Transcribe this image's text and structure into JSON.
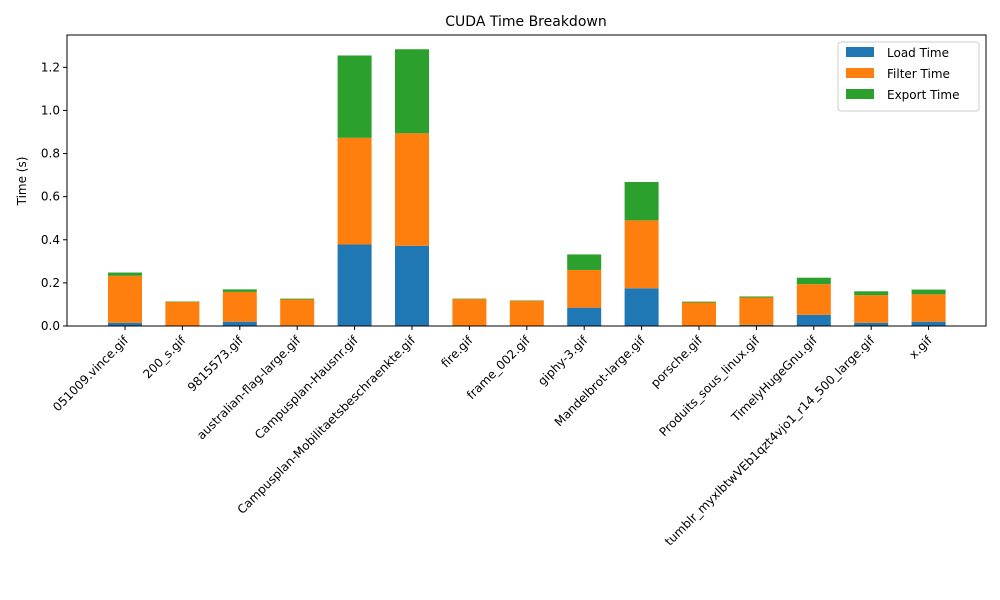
{
  "chart_data": {
    "type": "bar",
    "stacked": true,
    "title": "CUDA Time Breakdown",
    "xlabel": "",
    "ylabel": "Time (s)",
    "ylim": [
      0,
      1.35
    ],
    "yticks": [
      "0.0",
      "0.2",
      "0.4",
      "0.6",
      "0.8",
      "1.0",
      "1.2"
    ],
    "grid": false,
    "legend_position": "top-right",
    "categories": [
      "051009.vince.gif",
      "200_s.gif",
      "9815573.gif",
      "australian-flag-large.gif",
      "Campusplan-Hausnr.gif",
      "Campusplan-Mobilitaetsbeschraenkte.gif",
      "fire.gif",
      "frame_002.gif",
      "giphy-3.gif",
      "Mandelbrot-large.gif",
      "porsche.gif",
      "Produits_sous_linux.gif",
      "TimelyHugeGnu.gif",
      "tumblr_myxlbtwVEb1qzt4vjo1_r14_500_large.gif",
      "x.gif"
    ],
    "series": [
      {
        "name": "Load Time",
        "color": "#1f77b4",
        "values": [
          0.015,
          0.002,
          0.02,
          0.003,
          0.378,
          0.372,
          0.002,
          0.002,
          0.085,
          0.175,
          0.002,
          0.005,
          0.052,
          0.015,
          0.02
        ]
      },
      {
        "name": "Filter Time",
        "color": "#ff7f0e",
        "values": [
          0.218,
          0.11,
          0.138,
          0.12,
          0.495,
          0.522,
          0.123,
          0.115,
          0.175,
          0.315,
          0.107,
          0.127,
          0.142,
          0.128,
          0.127
        ]
      },
      {
        "name": "Export Time",
        "color": "#2ca02c",
        "values": [
          0.015,
          0.002,
          0.012,
          0.004,
          0.382,
          0.39,
          0.002,
          0.002,
          0.072,
          0.178,
          0.004,
          0.005,
          0.03,
          0.018,
          0.022
        ]
      }
    ]
  }
}
